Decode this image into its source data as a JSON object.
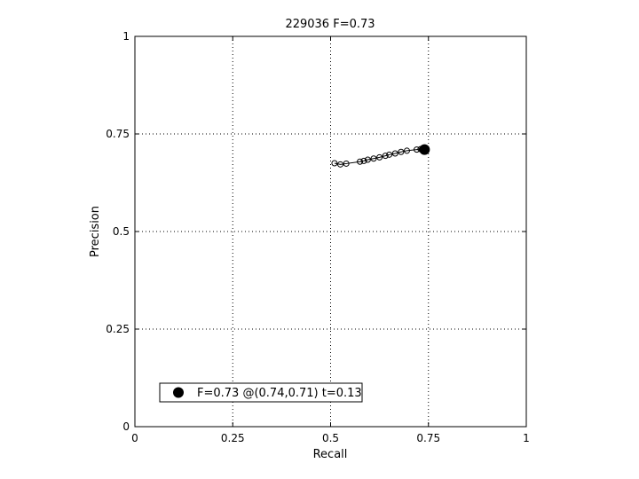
{
  "chart_data": {
    "type": "line",
    "title": "229036 F=0.73",
    "xlabel": "Recall",
    "ylabel": "Precision",
    "xlim": [
      0,
      1
    ],
    "ylim": [
      0,
      1
    ],
    "xticks": [
      0,
      0.25,
      0.5,
      0.75,
      1
    ],
    "yticks": [
      0,
      0.25,
      0.5,
      0.75,
      1
    ],
    "xtick_labels": [
      "0",
      "0.25",
      "0.5",
      "0.75",
      "1"
    ],
    "ytick_labels": [
      "0",
      "0.25",
      "0.5",
      "0.75",
      "1"
    ],
    "grid": true,
    "series": [
      {
        "marker": "open-circle",
        "color": "#000000",
        "x": [
          0.51,
          0.525,
          0.54,
          0.575,
          0.585,
          0.595,
          0.61,
          0.625,
          0.64,
          0.65,
          0.665,
          0.68,
          0.695,
          0.72,
          0.73
        ],
        "y": [
          0.675,
          0.672,
          0.674,
          0.679,
          0.681,
          0.684,
          0.687,
          0.69,
          0.694,
          0.697,
          0.7,
          0.704,
          0.707,
          0.71,
          0.711
        ]
      }
    ],
    "best_point": {
      "x": 0.74,
      "y": 0.71,
      "marker": "filled-circle",
      "color": "#000000"
    },
    "legend": {
      "text": "F=0.73 @(0.74,0.71) t=0.13",
      "position": "bottom-left"
    }
  }
}
